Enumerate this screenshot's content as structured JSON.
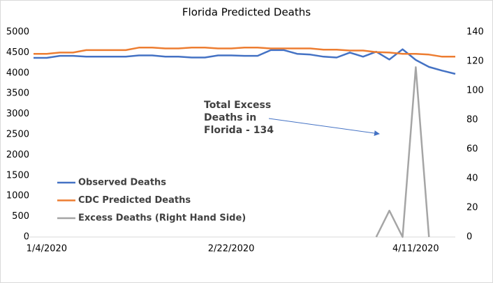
{
  "chart_data": {
    "type": "line",
    "title": "Florida Predicted Deaths",
    "categories": [
      null,
      "1/4/2020",
      null,
      null,
      null,
      null,
      null,
      null,
      null,
      null,
      null,
      null,
      null,
      null,
      null,
      "2/22/2020",
      null,
      null,
      null,
      null,
      null,
      null,
      null,
      null,
      null,
      null,
      null,
      null,
      null,
      "4/11/2020",
      null,
      null,
      null
    ],
    "series": [
      {
        "name": "Observed Deaths",
        "color": "#4472c4",
        "axis": "y",
        "values": [
          4370,
          4370,
          4420,
          4420,
          4400,
          4400,
          4400,
          4400,
          4430,
          4430,
          4400,
          4400,
          4380,
          4380,
          4430,
          4430,
          4420,
          4420,
          4560,
          4560,
          4470,
          4450,
          4400,
          4380,
          4500,
          4400,
          4520,
          4330,
          4580,
          4320,
          4150,
          4060,
          3980
        ]
      },
      {
        "name": "CDC Predicted Deaths",
        "color": "#ed7d31",
        "axis": "y",
        "values": [
          4470,
          4470,
          4500,
          4500,
          4560,
          4560,
          4560,
          4560,
          4620,
          4620,
          4600,
          4600,
          4620,
          4620,
          4600,
          4600,
          4620,
          4620,
          4600,
          4600,
          4600,
          4600,
          4570,
          4570,
          4550,
          4550,
          4510,
          4500,
          4470,
          4470,
          4450,
          4400,
          4400
        ]
      },
      {
        "name": "Excess Deaths (Right Hand Side)",
        "color": "#a5a5a5",
        "axis": "y2",
        "values": [
          null,
          null,
          null,
          null,
          null,
          null,
          null,
          null,
          null,
          null,
          null,
          null,
          null,
          null,
          null,
          null,
          null,
          null,
          null,
          null,
          null,
          null,
          null,
          null,
          null,
          null,
          0,
          18,
          0,
          116,
          0,
          null,
          null
        ]
      }
    ],
    "ylim": [
      0,
      5000
    ],
    "yticks": [
      0,
      500,
      1000,
      1500,
      2000,
      2500,
      3000,
      3500,
      4000,
      4500,
      5000
    ],
    "y2lim": [
      0,
      140
    ],
    "y2ticks": [
      0,
      20,
      40,
      60,
      80,
      100,
      120,
      140
    ],
    "annotation": [
      "Total Excess",
      "Deaths in",
      "Florida - 134"
    ],
    "legend": "lower left",
    "grid": false
  }
}
